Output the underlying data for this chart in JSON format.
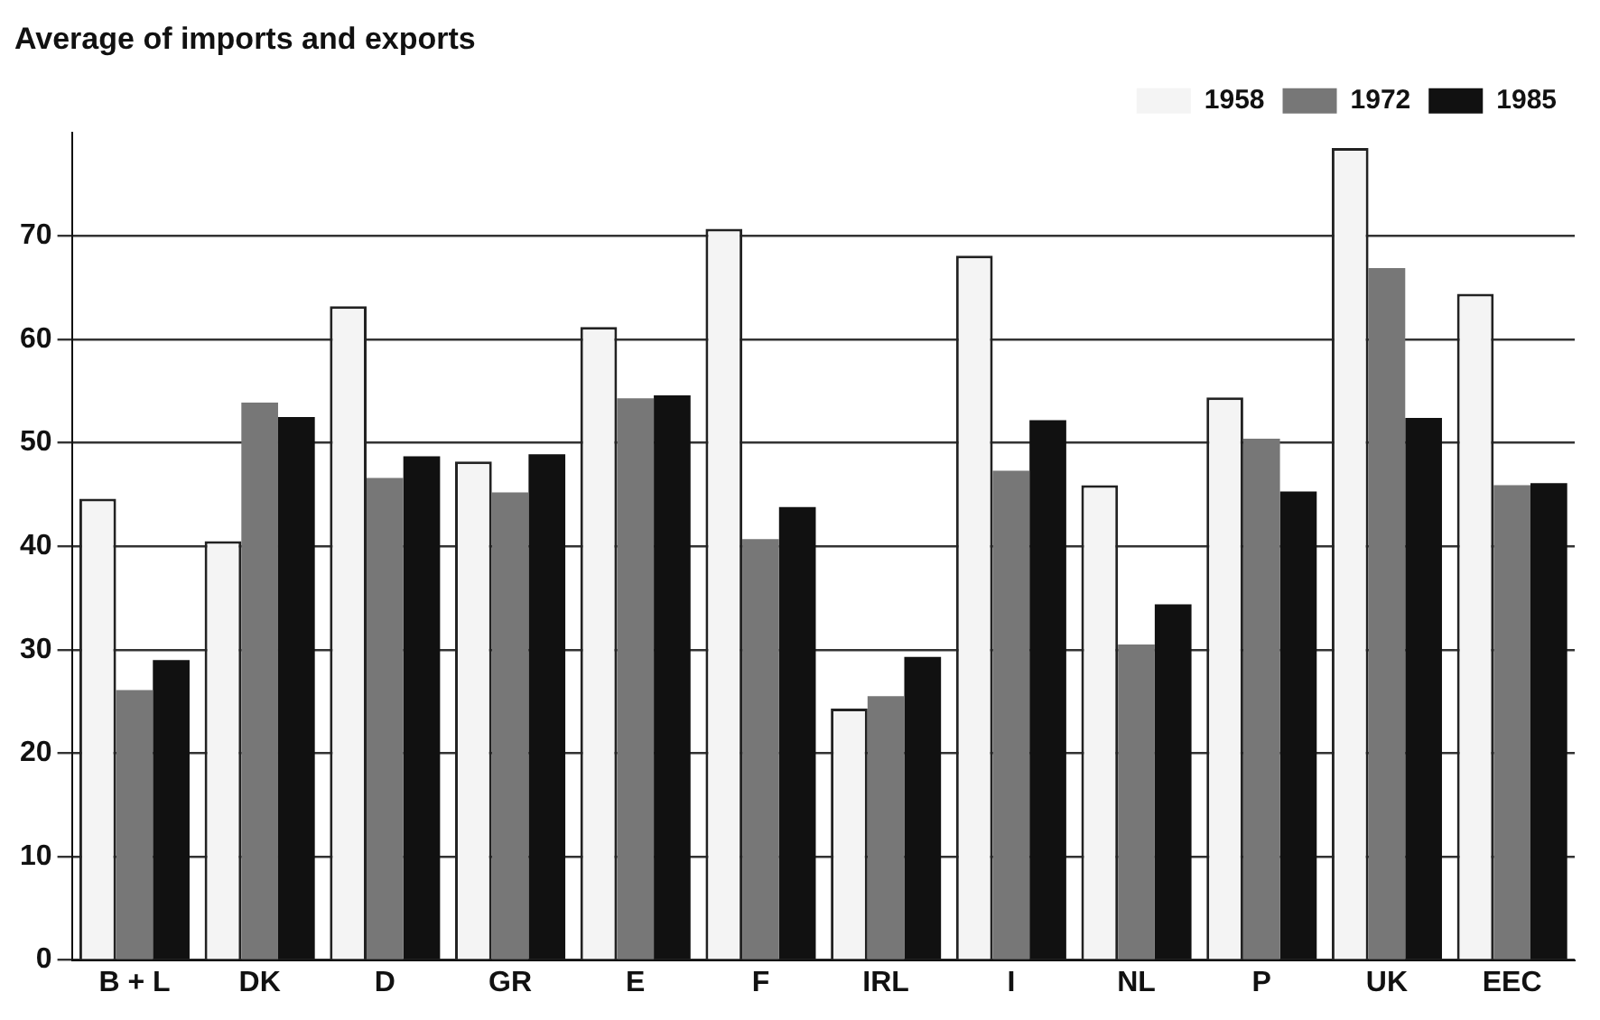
{
  "chart_data": {
    "type": "bar",
    "title": "Average of imports and exports",
    "categories": [
      "B + L",
      "DK",
      "D",
      "GR",
      "E",
      "F",
      "IRL",
      "I",
      "NL",
      "P",
      "UK",
      "EEC"
    ],
    "series": [
      {
        "name": "1958",
        "color": "#f4f4f4",
        "values": [
          44.6,
          40.5,
          63.2,
          48.2,
          61.2,
          70.7,
          24.3,
          68.1,
          45.9,
          54.4,
          78.5,
          64.4
        ]
      },
      {
        "name": "1972",
        "color": "#777777",
        "values": [
          26.1,
          53.9,
          46.6,
          45.2,
          54.3,
          40.7,
          25.5,
          47.3,
          30.5,
          50.4,
          66.9,
          45.9
        ]
      },
      {
        "name": "1985",
        "color": "#111111",
        "values": [
          29.0,
          52.5,
          48.7,
          48.9,
          54.6,
          43.8,
          29.3,
          52.2,
          34.4,
          45.3,
          52.4,
          46.1
        ]
      }
    ],
    "ylim": [
      0,
      80
    ],
    "yticks": [
      0,
      10,
      20,
      30,
      40,
      50,
      60,
      70
    ],
    "grid": "y",
    "legend": "top right"
  }
}
